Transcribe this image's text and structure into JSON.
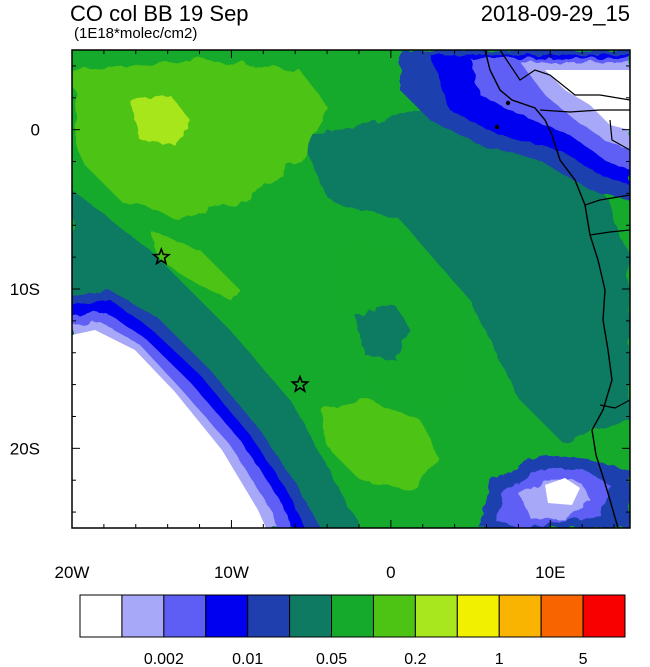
{
  "title": "CO col BB 19 Sep",
  "datetime": "2018-09-29_15",
  "units": "(1E18*molec/cm2)",
  "lon_ticks": [
    "20W",
    "10W",
    "0",
    "10E"
  ],
  "lat_ticks": [
    "0",
    "10S",
    "20S"
  ],
  "markers": [
    {
      "name": "site-1",
      "lon": -14.4,
      "lat": -8.0
    },
    {
      "name": "site-2",
      "lon": -5.7,
      "lat": -16.0
    }
  ],
  "colorbar": {
    "colors": [
      "#ffffff",
      "#a8a8f8",
      "#5e5ef5",
      "#0000f0",
      "#1f3fae",
      "#0f7a62",
      "#16aa2c",
      "#4dc314",
      "#a8e61e",
      "#f0f000",
      "#f8b400",
      "#f86400",
      "#f80000"
    ],
    "labels": [
      "0.002",
      "0.01",
      "0.05",
      "0.2",
      "1",
      "5"
    ]
  }
}
